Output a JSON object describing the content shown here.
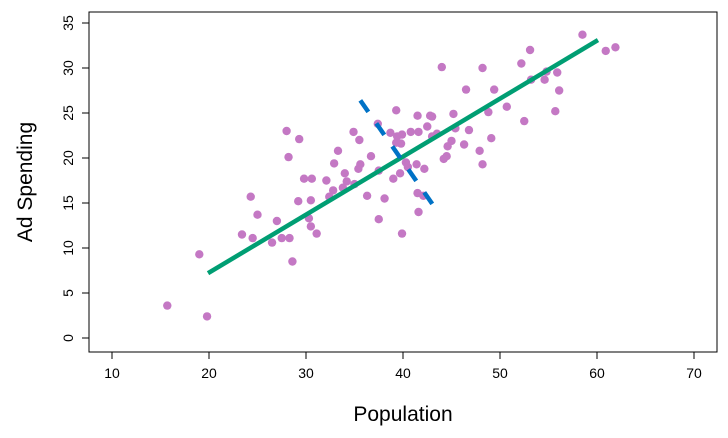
{
  "chart_data": {
    "type": "scatter",
    "title": "",
    "xlabel": "Population",
    "ylabel": "Ad Spending",
    "xlim": [
      8,
      72
    ],
    "ylim": [
      -1.5,
      36.5
    ],
    "xticks": [
      "10",
      "20",
      "30",
      "40",
      "50",
      "60",
      "70"
    ],
    "yticks": [
      "0",
      "5",
      "10",
      "15",
      "20",
      "25",
      "30",
      "35"
    ],
    "grid": false,
    "colors": {
      "points": "#c478c4",
      "first_component": "#009e73",
      "second_component": "#0072c6"
    },
    "points": [
      [
        15.7,
        3.6
      ],
      [
        19.8,
        2.4
      ],
      [
        19.0,
        9.3
      ],
      [
        23.4,
        11.5
      ],
      [
        24.3,
        15.7
      ],
      [
        24.5,
        11.1
      ],
      [
        25.0,
        13.7
      ],
      [
        26.5,
        10.6
      ],
      [
        27.0,
        13.0
      ],
      [
        27.5,
        11.1
      ],
      [
        28.0,
        23.0
      ],
      [
        28.2,
        20.1
      ],
      [
        28.3,
        11.1
      ],
      [
        28.6,
        8.5
      ],
      [
        29.2,
        15.2
      ],
      [
        29.3,
        22.1
      ],
      [
        29.8,
        17.7
      ],
      [
        30.3,
        13.3
      ],
      [
        30.5,
        12.4
      ],
      [
        30.6,
        17.7
      ],
      [
        30.5,
        15.3
      ],
      [
        31.1,
        11.6
      ],
      [
        32.1,
        17.5
      ],
      [
        32.4,
        15.7
      ],
      [
        32.8,
        16.4
      ],
      [
        32.9,
        19.4
      ],
      [
        33.3,
        20.8
      ],
      [
        33.8,
        16.7
      ],
      [
        34.0,
        18.3
      ],
      [
        34.2,
        17.4
      ],
      [
        34.9,
        22.9
      ],
      [
        35.0,
        17.1
      ],
      [
        35.4,
        18.8
      ],
      [
        35.5,
        22.0
      ],
      [
        35.6,
        19.3
      ],
      [
        36.3,
        15.8
      ],
      [
        36.7,
        20.2
      ],
      [
        37.4,
        23.8
      ],
      [
        37.5,
        18.6
      ],
      [
        37.5,
        13.2
      ],
      [
        38.1,
        15.5
      ],
      [
        38.7,
        22.8
      ],
      [
        39.0,
        17.7
      ],
      [
        39.3,
        25.3
      ],
      [
        39.3,
        21.7
      ],
      [
        39.4,
        22.4
      ],
      [
        39.7,
        18.3
      ],
      [
        39.8,
        21.6
      ],
      [
        39.9,
        22.6
      ],
      [
        39.9,
        11.6
      ],
      [
        40.3,
        19.5
      ],
      [
        40.5,
        19.0
      ],
      [
        40.8,
        22.9
      ],
      [
        41.4,
        19.3
      ],
      [
        41.5,
        24.7
      ],
      [
        41.5,
        16.1
      ],
      [
        41.6,
        22.9
      ],
      [
        41.6,
        14.0
      ],
      [
        42.1,
        15.8
      ],
      [
        42.2,
        18.8
      ],
      [
        42.5,
        23.5
      ],
      [
        42.8,
        24.7
      ],
      [
        43.0,
        24.6
      ],
      [
        43.0,
        22.4
      ],
      [
        43.5,
        22.7
      ],
      [
        44.0,
        30.1
      ],
      [
        44.2,
        19.9
      ],
      [
        44.5,
        20.2
      ],
      [
        44.6,
        21.3
      ],
      [
        45.0,
        21.9
      ],
      [
        45.2,
        24.9
      ],
      [
        45.4,
        23.3
      ],
      [
        46.3,
        21.5
      ],
      [
        46.5,
        27.6
      ],
      [
        46.8,
        23.1
      ],
      [
        47.9,
        20.8
      ],
      [
        48.2,
        30.0
      ],
      [
        48.2,
        19.3
      ],
      [
        48.8,
        25.1
      ],
      [
        49.1,
        22.2
      ],
      [
        49.4,
        27.6
      ],
      [
        50.7,
        25.7
      ],
      [
        52.2,
        30.5
      ],
      [
        52.5,
        24.1
      ],
      [
        53.1,
        32.0
      ],
      [
        53.2,
        28.7
      ],
      [
        54.6,
        28.7
      ],
      [
        54.8,
        29.6
      ],
      [
        55.7,
        25.2
      ],
      [
        55.9,
        29.5
      ],
      [
        56.1,
        27.5
      ],
      [
        58.5,
        33.7
      ],
      [
        60.9,
        31.9
      ],
      [
        61.9,
        32.3
      ]
    ],
    "lines": [
      {
        "style": "solid",
        "from": [
          19.9,
          7.2
        ],
        "to": [
          60.1,
          33.1
        ]
      },
      {
        "style": "dashed",
        "from": [
          35.6,
          26.4
        ],
        "to": [
          43.6,
          14.0
        ]
      }
    ]
  }
}
